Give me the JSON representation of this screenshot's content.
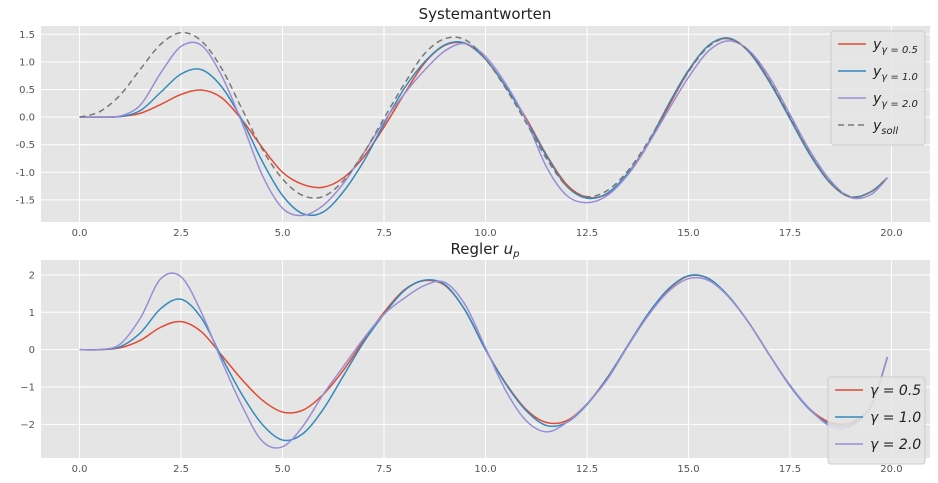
{
  "figure": {
    "background": "#ffffff",
    "axes_background": "#e5e5e5",
    "grid_color": "#ffffff"
  },
  "chart_data": [
    {
      "type": "line",
      "title": "Systemantworten",
      "xlabel": "",
      "ylabel": "",
      "xlim": [
        -0.95,
        20.95
      ],
      "ylim": [
        -1.9,
        1.65
      ],
      "xticks": [
        "0.0",
        "2.5",
        "5.0",
        "7.5",
        "10.0",
        "12.5",
        "15.0",
        "17.5",
        "20.0"
      ],
      "xtick_values": [
        0,
        2.5,
        5,
        7.5,
        10,
        12.5,
        15,
        17.5,
        20
      ],
      "yticks": [
        "1.5",
        "1.0",
        "0.5",
        "0.0",
        "-0.5",
        "-1.0",
        "-1.5"
      ],
      "ytick_values": [
        1.5,
        1.0,
        0.5,
        0.0,
        -0.5,
        -1.0,
        -1.5
      ],
      "grid": true,
      "legend": "upper right",
      "x": [
        0,
        0.5,
        1,
        1.5,
        2,
        2.5,
        3,
        3.5,
        4,
        4.5,
        5,
        5.5,
        6,
        6.5,
        7,
        7.5,
        8,
        8.5,
        9,
        9.5,
        10,
        10.5,
        11,
        11.5,
        12,
        12.5,
        13,
        13.5,
        14,
        14.5,
        15,
        15.5,
        16,
        16.5,
        17,
        17.5,
        18,
        18.5,
        19,
        19.5,
        19.9
      ],
      "series": [
        {
          "name_main": "y",
          "name_sub": "γ = 0.5",
          "color": "#e24a33",
          "dash": "",
          "values": [
            0,
            0,
            0.01,
            0.07,
            0.23,
            0.41,
            0.49,
            0.35,
            -0.05,
            -0.55,
            -1.0,
            -1.22,
            -1.27,
            -1.1,
            -0.72,
            -0.18,
            0.42,
            0.98,
            1.3,
            1.33,
            1.05,
            0.55,
            -0.02,
            -0.68,
            -1.22,
            -1.45,
            -1.39,
            -1.05,
            -0.5,
            0.18,
            0.83,
            1.3,
            1.42,
            1.18,
            0.65,
            -0.02,
            -0.68,
            -1.2,
            -1.45,
            -1.35,
            -1.1
          ]
        },
        {
          "name_main": "y",
          "name_sub": "γ = 1.0",
          "color": "#348abd",
          "dash": "",
          "values": [
            0,
            0,
            0.01,
            0.12,
            0.45,
            0.78,
            0.86,
            0.55,
            -0.05,
            -0.8,
            -1.42,
            -1.75,
            -1.72,
            -1.35,
            -0.8,
            -0.12,
            0.52,
            1.0,
            1.31,
            1.34,
            1.05,
            0.55,
            -0.05,
            -0.7,
            -1.25,
            -1.47,
            -1.38,
            -1.02,
            -0.48,
            0.22,
            0.85,
            1.3,
            1.43,
            1.17,
            0.63,
            -0.03,
            -0.69,
            -1.2,
            -1.45,
            -1.35,
            -1.1
          ]
        },
        {
          "name_main": "y",
          "name_sub": "γ = 2.0",
          "color": "#988ed5",
          "dash": "",
          "values": [
            0,
            0,
            0.02,
            0.22,
            0.8,
            1.28,
            1.3,
            0.75,
            -0.1,
            -1.05,
            -1.65,
            -1.78,
            -1.6,
            -1.2,
            -0.65,
            -0.08,
            0.42,
            0.85,
            1.2,
            1.33,
            1.1,
            0.6,
            -0.05,
            -0.9,
            -1.42,
            -1.55,
            -1.42,
            -1.05,
            -0.5,
            0.12,
            0.72,
            1.2,
            1.38,
            1.2,
            0.72,
            0.05,
            -0.62,
            -1.15,
            -1.46,
            -1.4,
            -1.1
          ]
        },
        {
          "name_main": "y",
          "name_sub": "soll",
          "color": "#777777",
          "dash": "6,4",
          "values": [
            0,
            0.1,
            0.4,
            0.87,
            1.32,
            1.53,
            1.38,
            0.88,
            0.15,
            -0.58,
            -1.12,
            -1.42,
            -1.44,
            -1.15,
            -0.65,
            -0.02,
            0.6,
            1.15,
            1.42,
            1.4,
            1.05,
            0.52,
            -0.1,
            -0.75,
            -1.25,
            -1.44,
            -1.33,
            -0.98,
            -0.45,
            0.2,
            0.82,
            1.28,
            1.42,
            1.18,
            0.66,
            0.0,
            -0.67,
            -1.19,
            -1.44,
            -1.35,
            -1.1
          ]
        }
      ]
    },
    {
      "type": "line",
      "title_main": "Regler",
      "title_var": "u",
      "title_sub": "p",
      "xlabel": "",
      "ylabel": "",
      "xlim": [
        -0.95,
        20.95
      ],
      "ylim": [
        -2.9,
        2.4
      ],
      "xticks": [
        "0.0",
        "2.5",
        "5.0",
        "7.5",
        "10.0",
        "12.5",
        "15.0",
        "17.5",
        "20.0"
      ],
      "xtick_values": [
        0,
        2.5,
        5,
        7.5,
        10,
        12.5,
        15,
        17.5,
        20
      ],
      "yticks": [
        "2",
        "1",
        "0",
        "−1",
        "−2"
      ],
      "ytick_values": [
        2,
        1,
        0,
        -1,
        -2
      ],
      "grid": true,
      "legend": "lower right",
      "x": [
        0,
        0.5,
        1,
        1.5,
        2,
        2.5,
        3,
        3.5,
        4,
        4.5,
        5,
        5.5,
        6,
        6.5,
        7,
        7.5,
        8,
        8.5,
        9,
        9.5,
        10,
        10.5,
        11,
        11.5,
        12,
        12.5,
        13,
        13.5,
        14,
        14.5,
        15,
        15.5,
        16,
        16.5,
        17,
        17.5,
        18,
        18.5,
        19,
        19.5,
        19.9
      ],
      "series": [
        {
          "name": "γ = 0.5",
          "color": "#e24a33",
          "dash": "",
          "values": [
            0,
            0,
            0.05,
            0.25,
            0.6,
            0.75,
            0.48,
            -0.15,
            -0.8,
            -1.35,
            -1.67,
            -1.62,
            -1.2,
            -0.55,
            0.25,
            1.0,
            1.6,
            1.85,
            1.72,
            1.05,
            0.0,
            -0.9,
            -1.6,
            -1.95,
            -1.9,
            -1.45,
            -0.75,
            0.1,
            0.95,
            1.6,
            1.97,
            1.9,
            1.4,
            0.7,
            -0.15,
            -0.95,
            -1.6,
            -1.95,
            -1.95,
            -1.5,
            -0.2
          ]
        },
        {
          "name": "γ = 1.0",
          "color": "#348abd",
          "dash": "",
          "values": [
            0,
            0,
            0.08,
            0.45,
            1.1,
            1.35,
            0.85,
            -0.2,
            -1.2,
            -2.0,
            -2.42,
            -2.25,
            -1.6,
            -0.7,
            0.2,
            0.95,
            1.58,
            1.86,
            1.74,
            1.05,
            0.0,
            -0.92,
            -1.63,
            -2.03,
            -1.95,
            -1.47,
            -0.76,
            0.1,
            0.95,
            1.62,
            1.98,
            1.9,
            1.42,
            0.7,
            -0.15,
            -0.97,
            -1.62,
            -2.0,
            -2.0,
            -1.5,
            -0.2
          ]
        },
        {
          "name": "γ = 2.0",
          "color": "#988ed5",
          "dash": "",
          "values": [
            0,
            0,
            0.15,
            0.85,
            1.9,
            1.95,
            1.0,
            -0.3,
            -1.5,
            -2.45,
            -2.6,
            -2.05,
            -1.2,
            -0.45,
            0.3,
            0.95,
            1.38,
            1.72,
            1.8,
            1.2,
            0.05,
            -1.1,
            -1.9,
            -2.2,
            -1.95,
            -1.45,
            -0.8,
            0.08,
            0.9,
            1.55,
            1.9,
            1.85,
            1.4,
            0.7,
            -0.15,
            -0.95,
            -1.6,
            -2.05,
            -2.05,
            -1.5,
            -0.2
          ]
        }
      ]
    }
  ]
}
